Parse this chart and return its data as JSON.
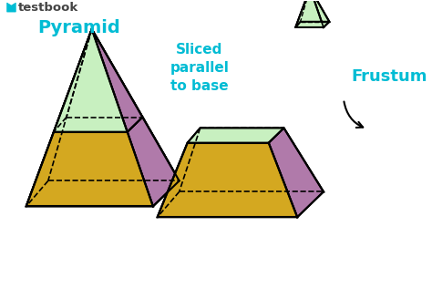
{
  "bg_color": "#ffffff",
  "cyan": "#00bcd4",
  "black": "#000000",
  "colors": {
    "green": "#4caf50",
    "light_green": "#c8f0c0",
    "yellow": "#d4a820",
    "blue": "#1a5fa8",
    "purple": "#b07aaa",
    "white": "#f0f0f0"
  },
  "title": "Pyramid",
  "label2": "Sliced\nparallel\nto base",
  "label3": "Frustum",
  "testbook_color": "#00bcd4"
}
